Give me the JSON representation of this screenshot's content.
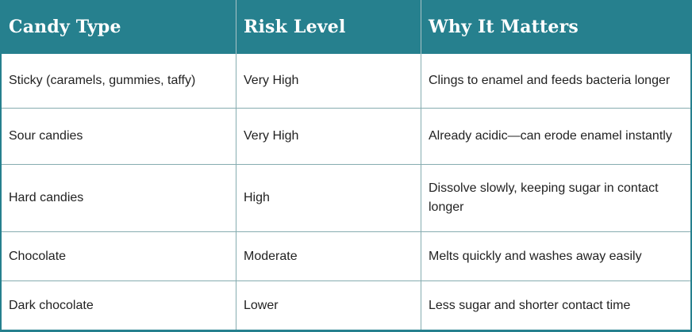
{
  "chart_data": {
    "type": "table",
    "title": "",
    "columns": [
      "Candy Type",
      "Risk Level",
      "Why It Matters"
    ],
    "rows": [
      [
        "Sticky (caramels, gummies, taffy)",
        "Very High",
        "Clings to enamel and feeds bacteria longer"
      ],
      [
        "Sour candies",
        "Very High",
        "Already acidic—can erode enamel instantly"
      ],
      [
        "Hard candies",
        "High",
        "Dissolve slowly, keeping sugar in contact longer"
      ],
      [
        "Chocolate",
        "Moderate",
        "Melts quickly and washes away easily"
      ],
      [
        "Dark chocolate",
        "Lower",
        "Less sugar and shorter contact time"
      ]
    ],
    "layout": {
      "header_row": true,
      "grid": true
    }
  },
  "colors": {
    "header_bg": "#26808e",
    "header_text": "#ffffff",
    "body_text": "#222222",
    "grid_line": "#86acb0",
    "header_divider": "#a9c3c6",
    "outer_border": "#26808e"
  }
}
